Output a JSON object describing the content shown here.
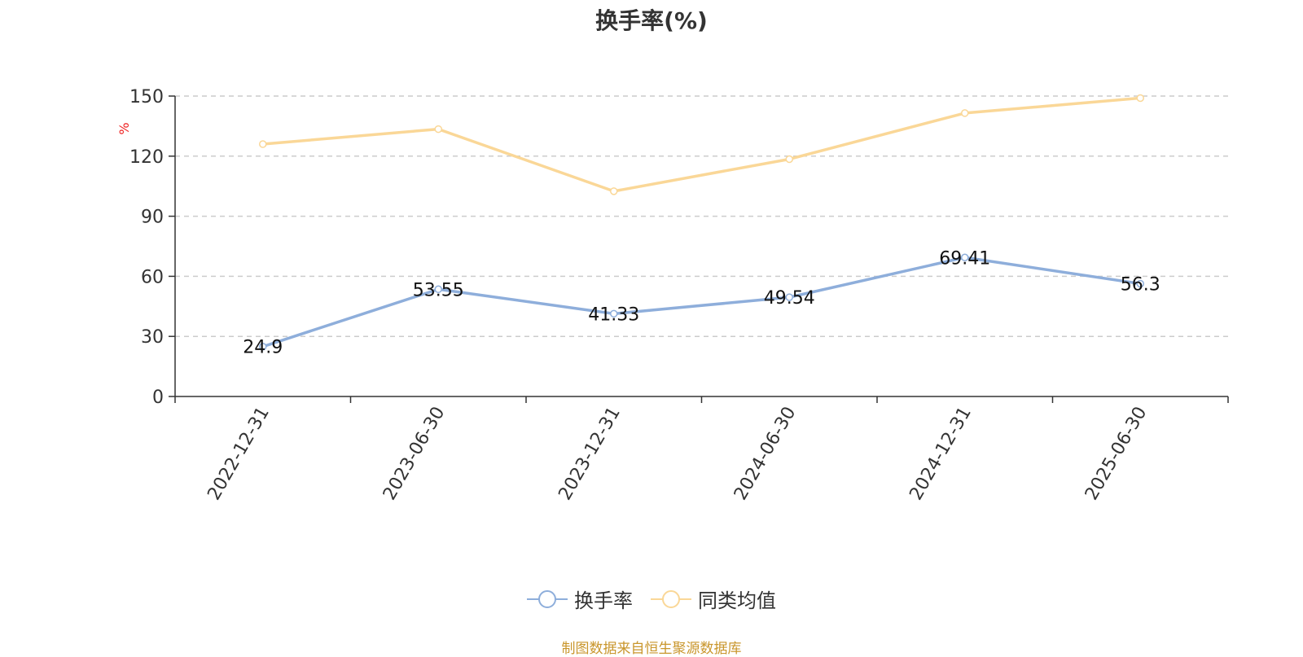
{
  "chart_data": {
    "type": "line",
    "title": "换手率(%)",
    "ylabel": "%",
    "xlabel": "",
    "categories": [
      "2022-12-31",
      "2023-06-30",
      "2023-12-31",
      "2024-06-30",
      "2024-12-31",
      "2025-06-30"
    ],
    "series": [
      {
        "name": "换手率",
        "values": [
          24.9,
          53.55,
          41.33,
          49.54,
          69.41,
          56.3
        ],
        "data_labels": [
          "24.9",
          "53.55",
          "41.33",
          "49.54",
          "69.41",
          "56.3"
        ],
        "color": "#8eaedb"
      },
      {
        "name": "同类均值",
        "values": [
          126.0,
          133.5,
          102.5,
          118.5,
          141.5,
          149.0
        ],
        "color": "#fad797"
      }
    ],
    "ylim": [
      0,
      150
    ],
    "yticks": [
      "0",
      "30",
      "60",
      "90",
      "120",
      "150"
    ],
    "ytick_values": [
      0,
      30,
      60,
      90,
      120,
      150
    ],
    "grid": true,
    "legend_position": "bottom-center"
  },
  "source_note": "制图数据来自恒生聚源数据库"
}
